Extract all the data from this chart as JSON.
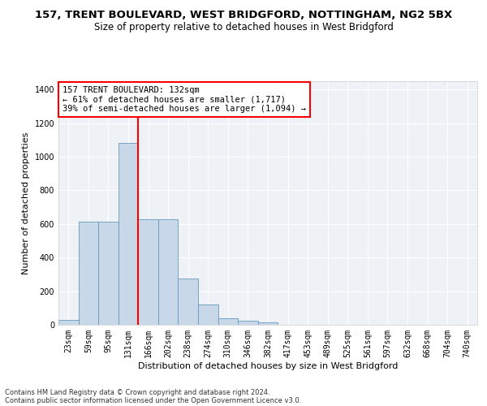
{
  "title": "157, TRENT BOULEVARD, WEST BRIDGFORD, NOTTINGHAM, NG2 5BX",
  "subtitle": "Size of property relative to detached houses in West Bridgford",
  "xlabel": "Distribution of detached houses by size in West Bridgford",
  "ylabel": "Number of detached properties",
  "footer_line1": "Contains HM Land Registry data © Crown copyright and database right 2024.",
  "footer_line2": "Contains public sector information licensed under the Open Government Licence v3.0.",
  "bar_labels": [
    "23sqm",
    "59sqm",
    "95sqm",
    "131sqm",
    "166sqm",
    "202sqm",
    "238sqm",
    "274sqm",
    "310sqm",
    "346sqm",
    "382sqm",
    "417sqm",
    "453sqm",
    "489sqm",
    "525sqm",
    "561sqm",
    "597sqm",
    "632sqm",
    "668sqm",
    "704sqm",
    "740sqm"
  ],
  "bar_values": [
    30,
    615,
    615,
    1085,
    630,
    630,
    275,
    120,
    40,
    22,
    13,
    0,
    0,
    0,
    0,
    0,
    0,
    0,
    0,
    0,
    0
  ],
  "bar_color": "#c8d8e8",
  "bar_edge_color": "#6699bb",
  "vline_x": 3.5,
  "vline_color": "red",
  "annotation_text": "157 TRENT BOULEVARD: 132sqm\n← 61% of detached houses are smaller (1,717)\n39% of semi-detached houses are larger (1,094) →",
  "ylim": [
    0,
    1450
  ],
  "yticks": [
    0,
    200,
    400,
    600,
    800,
    1000,
    1200,
    1400
  ],
  "bg_color": "#eef2f7",
  "grid_color": "#ffffff",
  "title_fontsize": 9.5,
  "subtitle_fontsize": 8.5,
  "axis_label_fontsize": 8,
  "tick_fontsize": 7,
  "annotation_fontsize": 7.5,
  "footer_fontsize": 6
}
